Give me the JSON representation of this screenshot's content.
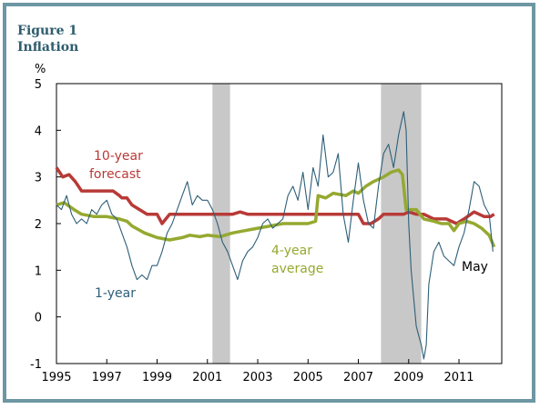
{
  "figure": {
    "label": "Figure 1",
    "title": "Inflation"
  },
  "chart_data": {
    "type": "line",
    "ylabel": "%",
    "ylim": [
      -1,
      5
    ],
    "xlim": [
      1995,
      2012.7
    ],
    "y_ticks": [
      "5",
      "4",
      "3",
      "2",
      "1",
      "0",
      "-1"
    ],
    "x_ticks": [
      "1995",
      "1997",
      "1999",
      "2001",
      "2003",
      "2005",
      "2007",
      "2009",
      "2011"
    ],
    "recessions": [
      {
        "start": 2001.2,
        "end": 2001.9
      },
      {
        "start": 2007.9,
        "end": 2009.5
      }
    ],
    "annotations": {
      "forecast_line1": "10-year",
      "forecast_line2": "forecast",
      "average_line1": "4-year",
      "average_line2": "average",
      "one_year": "1-year",
      "may": "May"
    },
    "colors": {
      "forecast": "#b83a37",
      "average": "#95a930",
      "one_year": "#2e5f78",
      "recession": "#c8c8c8"
    },
    "series": [
      {
        "name": "10-year forecast",
        "x": [
          1995.0,
          1995.25,
          1995.5,
          1995.75,
          1996.0,
          1996.5,
          1997.0,
          1997.25,
          1997.5,
          1997.6,
          1997.8,
          1998.0,
          1998.3,
          1998.6,
          1998.8,
          1999.0,
          1999.2,
          1999.5,
          2000.0,
          2000.5,
          2001.0,
          2001.5,
          2002.0,
          2002.3,
          2002.6,
          2003.0,
          2004.0,
          2004.5,
          2005.0,
          2005.5,
          2006.0,
          2006.5,
          2007.0,
          2007.2,
          2007.5,
          2007.8,
          2008.0,
          2008.5,
          2008.8,
          2009.0,
          2009.3,
          2009.6,
          2010.0,
          2010.5,
          2010.9,
          2011.2,
          2011.6,
          2011.8,
          2012.0,
          2012.25,
          2012.4
        ],
        "values": [
          3.2,
          3.0,
          3.05,
          2.9,
          2.7,
          2.7,
          2.7,
          2.7,
          2.6,
          2.55,
          2.55,
          2.4,
          2.3,
          2.2,
          2.2,
          2.2,
          2.0,
          2.2,
          2.2,
          2.2,
          2.2,
          2.2,
          2.2,
          2.25,
          2.2,
          2.2,
          2.2,
          2.2,
          2.2,
          2.2,
          2.2,
          2.2,
          2.2,
          2.0,
          2.0,
          2.1,
          2.2,
          2.2,
          2.2,
          2.25,
          2.2,
          2.2,
          2.1,
          2.1,
          2.0,
          2.1,
          2.25,
          2.2,
          2.15,
          2.15,
          2.2
        ]
      },
      {
        "name": "4-year average",
        "x": [
          1995.0,
          1995.3,
          1995.7,
          1996.0,
          1996.5,
          1997.0,
          1997.5,
          1997.8,
          1998.0,
          1998.5,
          1999.0,
          1999.5,
          2000.0,
          2000.3,
          2000.7,
          2001.0,
          2001.5,
          2002.0,
          2002.5,
          2003.0,
          2003.5,
          2004.0,
          2004.5,
          2005.0,
          2005.3,
          2005.4,
          2005.7,
          2006.0,
          2006.5,
          2006.8,
          2007.0,
          2007.3,
          2007.6,
          2008.0,
          2008.3,
          2008.6,
          2008.75,
          2008.9,
          2009.0,
          2009.3,
          2009.6,
          2010.0,
          2010.3,
          2010.6,
          2010.8,
          2011.0,
          2011.3,
          2011.6,
          2011.9,
          2012.2,
          2012.4
        ],
        "values": [
          2.4,
          2.45,
          2.3,
          2.2,
          2.15,
          2.15,
          2.1,
          2.05,
          1.95,
          1.8,
          1.7,
          1.65,
          1.7,
          1.75,
          1.72,
          1.75,
          1.72,
          1.8,
          1.85,
          1.9,
          1.95,
          2.0,
          2.0,
          2.0,
          2.05,
          2.6,
          2.55,
          2.65,
          2.6,
          2.7,
          2.65,
          2.8,
          2.9,
          3.0,
          3.1,
          3.15,
          3.05,
          2.3,
          2.3,
          2.3,
          2.1,
          2.05,
          2.0,
          2.0,
          1.85,
          2.0,
          2.05,
          2.0,
          1.9,
          1.75,
          1.5
        ]
      },
      {
        "name": "1-year",
        "x": [
          1995.0,
          1995.2,
          1995.4,
          1995.6,
          1995.8,
          1996.0,
          1996.2,
          1996.4,
          1996.6,
          1996.8,
          1997.0,
          1997.2,
          1997.4,
          1997.6,
          1997.8,
          1998.0,
          1998.2,
          1998.4,
          1998.6,
          1998.8,
          1999.0,
          1999.2,
          1999.4,
          1999.6,
          1999.8,
          2000.0,
          2000.2,
          2000.4,
          2000.6,
          2000.8,
          2001.0,
          2001.2,
          2001.4,
          2001.6,
          2001.8,
          2002.0,
          2002.2,
          2002.4,
          2002.6,
          2002.8,
          2003.0,
          2003.2,
          2003.4,
          2003.6,
          2003.8,
          2004.0,
          2004.2,
          2004.4,
          2004.6,
          2004.8,
          2005.0,
          2005.2,
          2005.4,
          2005.6,
          2005.8,
          2006.0,
          2006.2,
          2006.4,
          2006.6,
          2006.8,
          2007.0,
          2007.2,
          2007.4,
          2007.6,
          2007.8,
          2008.0,
          2008.2,
          2008.4,
          2008.6,
          2008.8,
          2008.9,
          2009.0,
          2009.1,
          2009.2,
          2009.3,
          2009.4,
          2009.5,
          2009.6,
          2009.7,
          2009.8,
          2010.0,
          2010.2,
          2010.4,
          2010.6,
          2010.8,
          2011.0,
          2011.2,
          2011.4,
          2011.6,
          2011.8,
          2012.0,
          2012.2,
          2012.35
        ],
        "values": [
          2.4,
          2.3,
          2.6,
          2.2,
          2.0,
          2.1,
          2.0,
          2.3,
          2.2,
          2.4,
          2.5,
          2.2,
          2.1,
          1.8,
          1.5,
          1.1,
          0.8,
          0.9,
          0.8,
          1.1,
          1.1,
          1.4,
          1.8,
          2.0,
          2.3,
          2.6,
          2.9,
          2.4,
          2.6,
          2.5,
          2.5,
          2.3,
          2.0,
          1.6,
          1.4,
          1.1,
          0.8,
          1.2,
          1.4,
          1.5,
          1.7,
          2.0,
          2.1,
          1.9,
          2.0,
          2.1,
          2.6,
          2.8,
          2.5,
          3.1,
          2.3,
          3.2,
          2.8,
          3.9,
          3.0,
          3.1,
          3.5,
          2.2,
          1.6,
          2.5,
          3.3,
          2.5,
          2.0,
          1.9,
          2.8,
          3.5,
          3.7,
          3.2,
          3.9,
          4.4,
          4.0,
          2.0,
          1.0,
          0.4,
          -0.2,
          -0.4,
          -0.6,
          -0.9,
          -0.6,
          0.7,
          1.4,
          1.6,
          1.3,
          1.2,
          1.1,
          1.5,
          1.8,
          2.3,
          2.9,
          2.8,
          2.4,
          2.2,
          1.4
        ]
      }
    ]
  }
}
